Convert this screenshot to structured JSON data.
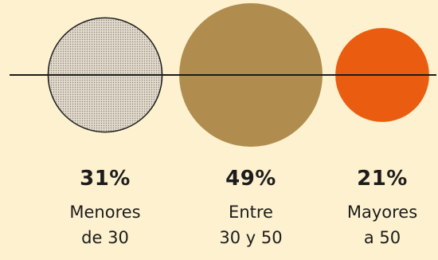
{
  "chart_data": {
    "type": "bubble",
    "categories": [
      "Menores de 30",
      "Entre 30 y 50",
      "Mayores a 50"
    ],
    "values": [
      31,
      49,
      21
    ],
    "unit": "%",
    "labels": [
      {
        "pct": "31%",
        "line1": "Menores",
        "line2": "de 30"
      },
      {
        "pct": "49%",
        "line1": "Entre",
        "line2": "30 y 50"
      },
      {
        "pct": "21%",
        "line1": "Mayores",
        "line2": "a 50"
      }
    ],
    "title": "",
    "xlabel": "",
    "ylabel": "",
    "legend": "none",
    "grid": false
  },
  "colors": {
    "background": "#fdf1cf",
    "dotted_fill": "#e2dacb",
    "dot_color": "#8a847b",
    "gold": "#b08d4f",
    "orange": "#ea5d10",
    "line": "#1c1c1c"
  }
}
